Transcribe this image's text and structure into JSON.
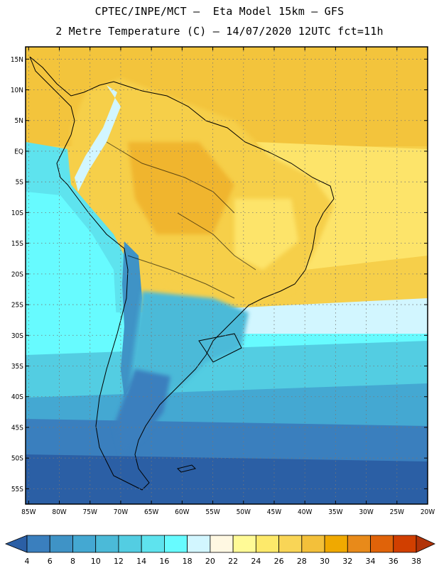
{
  "header": {
    "line1": "CPTEC/INPE/MCT –  Eta Model 15km – GFS",
    "line2": "2 Metre Temperature (C) – 14/07/2020 12UTC fct=11h"
  },
  "map": {
    "lat_labels": [
      "15N",
      "10N",
      "5N",
      "EQ",
      "5S",
      "10S",
      "15S",
      "20S",
      "25S",
      "30S",
      "35S",
      "40S",
      "45S",
      "50S",
      "55S"
    ],
    "lon_labels": [
      "85W",
      "80W",
      "75W",
      "70W",
      "65W",
      "60W",
      "55W",
      "50W",
      "45W",
      "40W",
      "35W",
      "30W",
      "25W",
      "20W"
    ],
    "lat_values": [
      15,
      10,
      5,
      0,
      -5,
      -10,
      -15,
      -20,
      -25,
      -30,
      -35,
      -40,
      -45,
      -50,
      -55
    ],
    "lon_values": [
      -85,
      -80,
      -75,
      -70,
      -65,
      -60,
      -55,
      -50,
      -45,
      -40,
      -35,
      -30,
      -25,
      -20
    ],
    "extent": {
      "lon_min": -85.5,
      "lon_max": -20,
      "lat_min": -57.5,
      "lat_max": 17
    }
  },
  "colorbar": {
    "labels": [
      "4",
      "6",
      "8",
      "10",
      "12",
      "14",
      "16",
      "18",
      "20",
      "22",
      "24",
      "26",
      "28",
      "30",
      "32",
      "34",
      "36",
      "38"
    ],
    "colors": [
      "#2b5fa5",
      "#3a7fbe",
      "#3f93c6",
      "#44a8d2",
      "#4bbad8",
      "#53cde2",
      "#5ee3ee",
      "#67fbff",
      "#d2f6ff",
      "#fff8e2",
      "#fffa96",
      "#fde96a",
      "#f9d556",
      "#f3c03a",
      "#f0a900",
      "#e88a1a",
      "#e06309",
      "#d13f00",
      "#b13308"
    ]
  }
}
